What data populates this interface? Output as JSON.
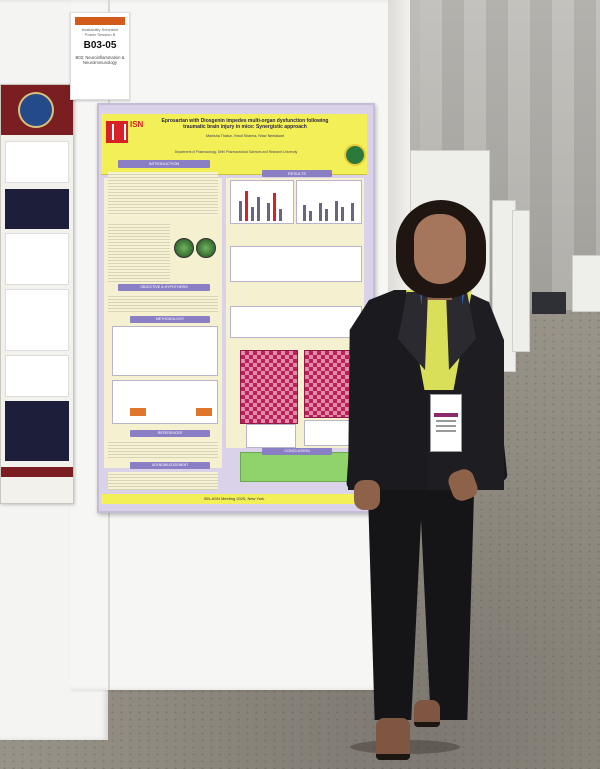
{
  "booth_label": {
    "header": "",
    "line1": "Availability Schedule",
    "line2": "Poster Session B",
    "code": "B03-05",
    "topic": "B03: Neuroinflammation & Neuroimmunology"
  },
  "poster": {
    "org_logo_text": "ISN",
    "title_line1": "Eprosartan with Diosgenin impedes multi-organ dysfunction following",
    "title_line2": "traumatic brain injury in mice: Synergistic approach",
    "authors": "Manisha Thakur, Vinod Sharma, Nirav Neelakant",
    "affiliation": "Department of Pharmacology, Delhi Pharmaceutical Sciences and Research University",
    "sections": {
      "introduction": "INTRODUCTION",
      "results": "RESULTS",
      "objectives": "OBJECTIVE & HYPOTHESIS",
      "methodology": "METHODOLOGY",
      "references": "REFERENCES",
      "acknowledgement": "ACKNOWLEDGEMENT",
      "conclusion": "CONCLUSION"
    },
    "footer": "ISN-ASN Meeting 2025, New York"
  },
  "colors": {
    "poster_title_bg": "#f3ef57",
    "poster_body_bg": "#d9d2e8",
    "section_header": "#8a7fc4",
    "conclusion_bg": "#8fd36a",
    "isn_red": "#d72027",
    "jacket": "#1b1b1f",
    "shirt": "#d9df58",
    "lanyard": "#2b5fb5"
  }
}
